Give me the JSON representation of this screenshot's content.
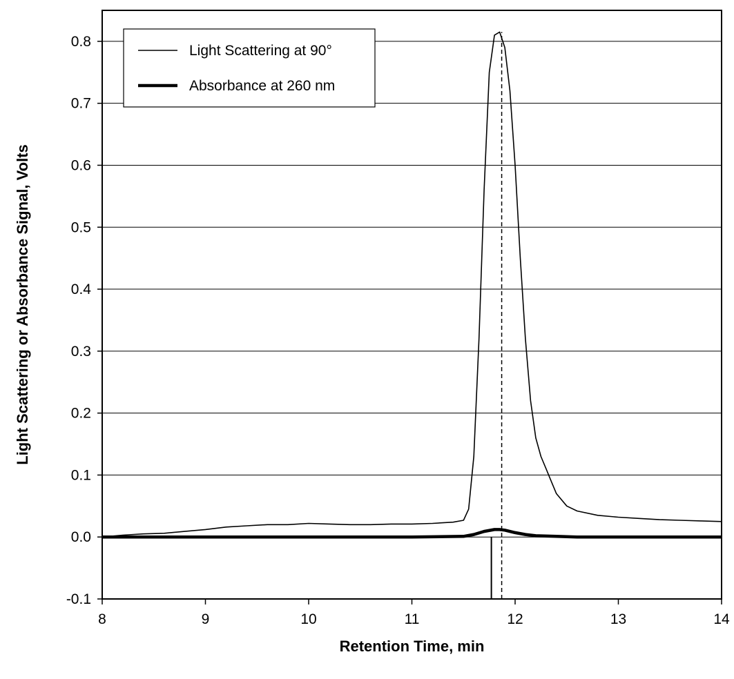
{
  "chart_data": {
    "type": "line",
    "title": "",
    "xlabel": "Retention Time,  min",
    "ylabel": "Light  Scattering  or  Absorbance  Signal,  Volts",
    "xlim": [
      8,
      14
    ],
    "ylim": [
      -0.1,
      0.85
    ],
    "x_ticks": [
      8,
      9,
      10,
      11,
      12,
      13,
      14
    ],
    "x_tick_labels": [
      "8",
      "9",
      "10",
      "11",
      "12",
      "13",
      "14"
    ],
    "y_ticks": [
      -0.1,
      0.0,
      0.1,
      0.2,
      0.3,
      0.4,
      0.5,
      0.6,
      0.7,
      0.8
    ],
    "y_tick_labels": [
      "-0.1",
      "0.0",
      "0.1",
      "0.2",
      "0.3",
      "0.4",
      "0.5",
      "0.6",
      "0.7",
      "0.8"
    ],
    "grid": "horizontal",
    "legend_position": "top-left",
    "series": [
      {
        "name": "Light Scattering at 90°",
        "line_style": "thin",
        "x": [
          8.0,
          8.2,
          8.4,
          8.6,
          8.8,
          9.0,
          9.2,
          9.4,
          9.6,
          9.8,
          10.0,
          10.2,
          10.4,
          10.6,
          10.8,
          11.0,
          11.2,
          11.4,
          11.5,
          11.55,
          11.6,
          11.65,
          11.7,
          11.75,
          11.8,
          11.85,
          11.9,
          11.95,
          12.0,
          12.05,
          12.1,
          12.15,
          12.2,
          12.25,
          12.3,
          12.35,
          12.4,
          12.5,
          12.6,
          12.8,
          13.0,
          13.2,
          13.4,
          13.6,
          13.8,
          14.0
        ],
        "y": [
          0.0,
          0.003,
          0.005,
          0.006,
          0.009,
          0.012,
          0.016,
          0.018,
          0.02,
          0.02,
          0.022,
          0.021,
          0.02,
          0.02,
          0.021,
          0.021,
          0.022,
          0.024,
          0.027,
          0.045,
          0.13,
          0.32,
          0.56,
          0.75,
          0.81,
          0.815,
          0.79,
          0.72,
          0.6,
          0.45,
          0.32,
          0.22,
          0.16,
          0.13,
          0.11,
          0.09,
          0.07,
          0.05,
          0.042,
          0.035,
          0.032,
          0.03,
          0.028,
          0.027,
          0.026,
          0.025
        ]
      },
      {
        "name": "Absorbance at 260 nm",
        "line_style": "thick",
        "x": [
          8.0,
          11.0,
          11.5,
          11.6,
          11.7,
          11.8,
          11.85,
          11.9,
          12.0,
          12.1,
          12.2,
          12.4,
          12.6,
          13.0,
          14.0
        ],
        "y": [
          0.0,
          0.0,
          0.001,
          0.004,
          0.009,
          0.012,
          0.012,
          0.011,
          0.007,
          0.004,
          0.002,
          0.001,
          0.0,
          0.0,
          0.0
        ]
      }
    ],
    "annotations": [
      {
        "type": "vertical-line",
        "style": "dashed",
        "x": 11.87,
        "y_from": -0.1,
        "y_to": 0.815
      },
      {
        "type": "vertical-line",
        "style": "solid",
        "x": 11.77,
        "y_from": -0.1,
        "y_to": 0.0
      }
    ]
  }
}
